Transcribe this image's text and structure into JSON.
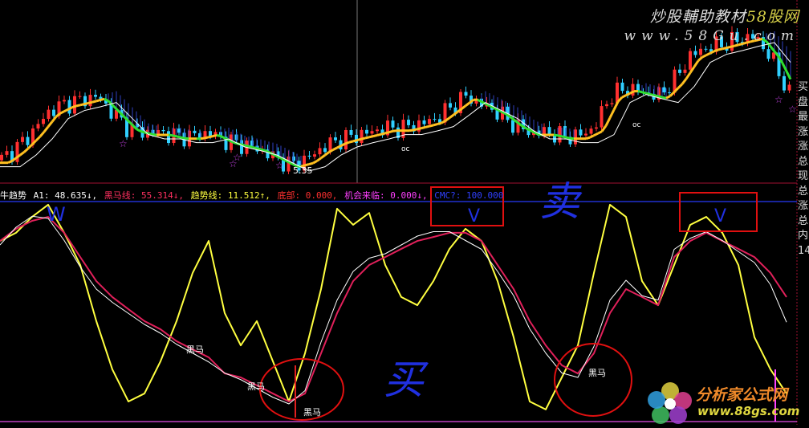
{
  "watermark": {
    "title_a": "炒股輔助教材",
    "title_b": "58股网",
    "url": "www.58Gu.com"
  },
  "logo": {
    "name": "分析家公式网",
    "url": "www.88gs.com"
  },
  "indicator": {
    "name": "牛趋势",
    "items": [
      {
        "label": "A1: 48.635↓,",
        "color": "#ffffff"
      },
      {
        "label": "黑马线: 55.314↓,",
        "color": "#ff3060"
      },
      {
        "label": "趋势线: 11.512↑,",
        "color": "#ffff40"
      },
      {
        "label": "底部: 0.000,",
        "color": "#ff3030"
      },
      {
        "label": "机会来临: 0.000↓,",
        "color": "#ff40ff"
      },
      {
        "label": "CMC?: 100.000",
        "color": "#3040ff"
      }
    ]
  },
  "price_label": "5.35",
  "annotations": {
    "sell": "卖",
    "buy": "买",
    "v_mark": "V",
    "w_mark": "W",
    "dark_horse": "黑马",
    "arrow_label": "oc"
  },
  "side_panel": [
    "买",
    "盘",
    "最",
    "涨",
    "涨",
    "总",
    "现",
    "总",
    "涨",
    "总",
    "内",
    "14"
  ],
  "colors": {
    "up": "#ff3030",
    "down": "#30d0ff",
    "yellow_line": "#ffff40",
    "red_line": "#e0205a",
    "white_line": "#ffffff",
    "trend_up": "#ffc020",
    "trend_down": "#30e030",
    "hatch": "#3040c0",
    "annotation_red": "#e01010",
    "annotation_blue": "#2030e0"
  },
  "chart_data": [
    {
      "type": "candlestick",
      "panel": "price",
      "closes": [
        5.43,
        5.65,
        5.95,
        6.33,
        6.48,
        6.55,
        6.63,
        6.33,
        6.03,
        5.95,
        5.95,
        5.88,
        5.88,
        5.95,
        5.8,
        5.73,
        5.65,
        5.5,
        5.35,
        5.43,
        5.65,
        5.8,
        5.88,
        5.95,
        6.03,
        6.03,
        6.1,
        6.18,
        6.4,
        6.63,
        6.48,
        6.33,
        6.1,
        5.95,
        5.95,
        5.88,
        5.88,
        6.03,
        6.63,
        6.78,
        6.7,
        6.63,
        6.93,
        7.38,
        7.53,
        7.6,
        7.68,
        7.75,
        7.38,
        6.78
      ]
    },
    {
      "type": "line",
      "panel": "indicator",
      "ylim": [
        0,
        100
      ],
      "series": [
        {
          "name": "趋势线",
          "color": "#ffff40",
          "values": [
            81.8,
            85.5,
            92.7,
            98.2,
            85.5,
            70.9,
            45.5,
            23.6,
            9.1,
            12.7,
            27.3,
            45.5,
            67.3,
            81.8,
            49.1,
            34.5,
            45.5,
            27.3,
            9.1,
            30.9,
            60,
            96.4,
            89.1,
            94.5,
            70.9,
            56.4,
            52.7,
            63.6,
            78.2,
            87.3,
            81.8,
            63.6,
            38.2,
            9.1,
            5.5,
            20,
            34.5,
            67.3,
            98.2,
            92.7,
            63.6,
            52.7,
            70.9,
            89.1,
            92.7,
            85.5,
            70.9,
            38.2,
            23.6,
            12.7
          ]
        },
        {
          "name": "黑马线",
          "color": "#e0205a",
          "values": [
            81.8,
            87.3,
            90.9,
            92.7,
            85.5,
            74.5,
            63.6,
            56.4,
            50.9,
            45.5,
            41.8,
            36.4,
            32.7,
            29.1,
            21.8,
            20,
            16.4,
            12.7,
            9.1,
            12.7,
            30.9,
            49.1,
            63.6,
            70.9,
            74.5,
            78.2,
            81.8,
            83.6,
            85.5,
            85.5,
            81.8,
            70.9,
            60,
            45.5,
            34.5,
            25.5,
            21.8,
            30.9,
            49.1,
            60,
            56.4,
            52.7,
            74.5,
            81.8,
            85.5,
            81.8,
            78.2,
            74.5,
            67.3,
            56.4
          ]
        },
        {
          "name": "A1",
          "color": "#ffffff",
          "values": [
            80,
            88,
            93,
            92,
            82,
            70,
            60,
            54,
            49,
            44,
            40,
            35,
            31,
            27,
            22,
            19,
            15,
            11,
            8,
            14,
            36,
            55,
            68,
            74,
            76,
            80,
            84,
            86,
            86,
            82,
            78,
            68,
            57,
            42,
            31,
            22,
            20,
            34,
            55,
            64,
            57,
            55,
            78,
            83,
            86,
            82,
            77,
            72,
            62,
            45
          ]
        }
      ]
    }
  ]
}
